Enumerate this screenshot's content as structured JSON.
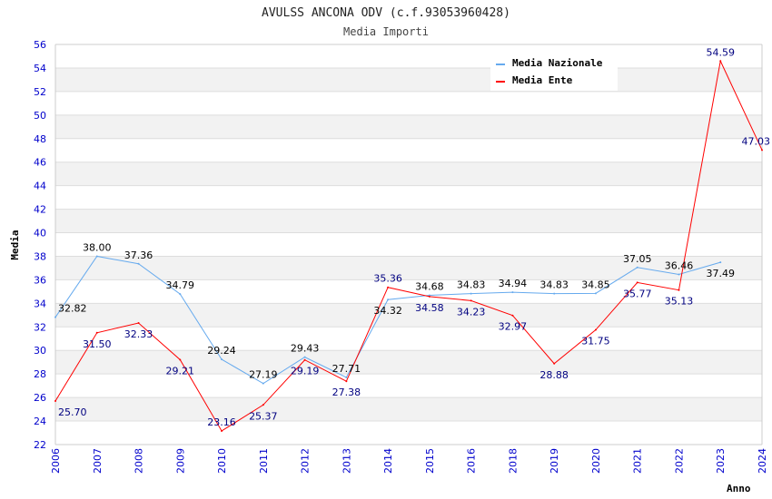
{
  "chart_data": {
    "type": "line",
    "title": "AVULSS ANCONA ODV (c.f.93053960428)",
    "subtitle": "Media Importi",
    "xlabel": "Anno",
    "ylabel": "Media",
    "ylim": [
      22,
      56
    ],
    "yticks": [
      22,
      24,
      26,
      28,
      30,
      32,
      34,
      36,
      38,
      40,
      42,
      44,
      46,
      48,
      50,
      52,
      54,
      56
    ],
    "grid": true,
    "legend_position": "top-right",
    "categories": [
      "2006",
      "2007",
      "2008",
      "2009",
      "2010",
      "2011",
      "2012",
      "2013",
      "2014",
      "2015",
      "2016",
      "2018",
      "2019",
      "2020",
      "2021",
      "2022",
      "2023",
      "2024"
    ],
    "series": [
      {
        "name": "Media Nazionale",
        "color": "#66aaee",
        "label_color": "#000000",
        "values": [
          32.82,
          38.0,
          37.36,
          34.79,
          29.24,
          27.19,
          29.43,
          27.71,
          34.32,
          34.68,
          34.83,
          34.94,
          34.83,
          34.85,
          37.05,
          36.46,
          37.49,
          null
        ]
      },
      {
        "name": "Media Ente",
        "color": "#ff0000",
        "label_color": "#000080",
        "values": [
          25.7,
          31.5,
          32.33,
          29.21,
          23.16,
          25.37,
          29.19,
          27.38,
          35.36,
          34.58,
          34.23,
          32.97,
          28.88,
          31.75,
          35.77,
          35.13,
          54.59,
          47.03
        ]
      }
    ]
  }
}
